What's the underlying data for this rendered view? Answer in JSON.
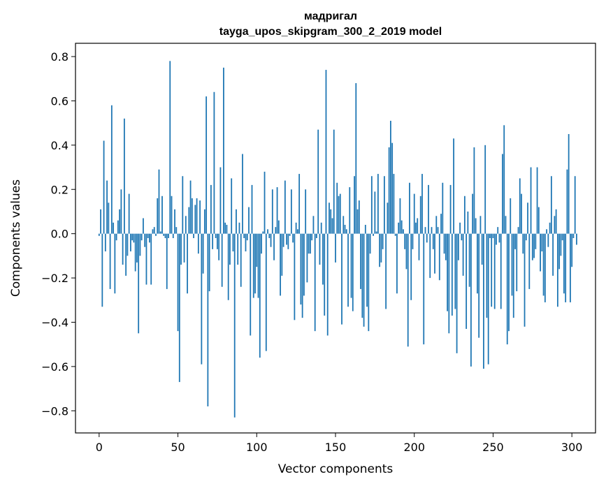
{
  "chart_data": {
    "type": "bar",
    "title": "мадригал",
    "subtitle": "tayga_upos_skipgram_300_2_2019 model",
    "xlabel": "Vector components",
    "ylabel": "Components values",
    "xlim": [
      -15,
      315
    ],
    "ylim": [
      -0.9,
      0.86
    ],
    "xticks": [
      0,
      50,
      100,
      150,
      200,
      250,
      300
    ],
    "yticks": [
      -0.8,
      -0.6,
      -0.4,
      -0.2,
      0.0,
      0.2,
      0.4,
      0.6,
      0.8
    ],
    "xtick_labels": [
      "0",
      "50",
      "100",
      "150",
      "200",
      "250",
      "300"
    ],
    "ytick_labels": [
      "−0.8",
      "−0.6",
      "−0.4",
      "−0.2",
      "0.0",
      "0.2",
      "0.4",
      "0.6",
      "0.8"
    ],
    "grid": false,
    "bar_color": "#1f77b4",
    "values": [
      -0.01,
      0.11,
      -0.33,
      0.42,
      -0.08,
      0.24,
      0.14,
      -0.25,
      0.58,
      0.05,
      -0.27,
      -0.03,
      0.06,
      0.11,
      0.2,
      -0.14,
      0.52,
      -0.19,
      -0.1,
      0.18,
      -0.08,
      -0.03,
      -0.04,
      -0.17,
      -0.13,
      -0.45,
      -0.1,
      -0.03,
      0.07,
      -0.06,
      -0.23,
      -0.02,
      -0.04,
      -0.23,
      0.02,
      0.03,
      -0.01,
      0.16,
      0.29,
      0.01,
      0.17,
      -0.01,
      -0.02,
      -0.25,
      -0.02,
      0.78,
      0.17,
      -0.02,
      0.11,
      0.03,
      -0.44,
      -0.67,
      -0.14,
      0.26,
      -0.13,
      0.08,
      -0.27,
      0.12,
      0.24,
      0.16,
      -0.02,
      0.13,
      0.16,
      -0.09,
      0.15,
      -0.59,
      -0.18,
      0.11,
      0.62,
      -0.78,
      -0.26,
      0.22,
      -0.07,
      0.64,
      -0.02,
      -0.07,
      -0.12,
      0.3,
      -0.24,
      0.75,
      0.05,
      0.04,
      -0.3,
      -0.14,
      0.25,
      -0.08,
      -0.83,
      0.11,
      -0.14,
      0.05,
      -0.24,
      0.36,
      -0.02,
      -0.08,
      -0.03,
      0.12,
      -0.46,
      0.22,
      -0.29,
      -0.27,
      -0.15,
      -0.29,
      -0.56,
      -0.09,
      0.01,
      0.28,
      -0.53,
      0.02,
      -0.02,
      -0.06,
      0.2,
      -0.12,
      0.03,
      0.21,
      0.06,
      -0.28,
      -0.19,
      -0.06,
      0.24,
      -0.05,
      -0.07,
      -0.01,
      0.2,
      -0.04,
      -0.39,
      0.05,
      0.02,
      0.27,
      -0.32,
      -0.38,
      -0.28,
      0.2,
      -0.22,
      -0.09,
      -0.09,
      -0.03,
      0.08,
      -0.44,
      -0.02,
      0.47,
      -0.14,
      0.05,
      -0.23,
      -0.37,
      0.74,
      -0.46,
      0.14,
      0.11,
      0.07,
      0.47,
      -0.13,
      0.23,
      0.17,
      0.18,
      -0.41,
      0.08,
      0.04,
      0.02,
      -0.33,
      0.21,
      -0.29,
      -0.35,
      0.26,
      0.68,
      0.11,
      0.15,
      -0.25,
      -0.38,
      -0.42,
      0.04,
      -0.33,
      -0.44,
      -0.09,
      0.26,
      -0.01,
      0.19,
      0.01,
      0.27,
      -0.15,
      -0.13,
      -0.07,
      0.26,
      -0.34,
      0.14,
      0.39,
      0.51,
      0.41,
      0.27,
      -0.01,
      -0.27,
      0.05,
      0.16,
      0.06,
      0.02,
      -0.07,
      -0.16,
      -0.51,
      0.23,
      -0.3,
      -0.07,
      0.18,
      0.05,
      0.07,
      -0.12,
      0.17,
      0.27,
      -0.5,
      0.03,
      -0.04,
      0.22,
      -0.2,
      0.03,
      -0.07,
      -0.18,
      0.08,
      0.03,
      -0.21,
      0.09,
      0.23,
      -0.09,
      -0.12,
      -0.35,
      -0.45,
      0.22,
      -0.37,
      0.43,
      -0.34,
      -0.54,
      -0.12,
      0.05,
      -0.03,
      -0.19,
      0.17,
      -0.43,
      0.1,
      -0.24,
      -0.6,
      0.18,
      0.39,
      0.07,
      -0.27,
      -0.47,
      0.08,
      -0.14,
      -0.61,
      0.4,
      -0.38,
      -0.59,
      -0.02,
      -0.33,
      -0.02,
      -0.34,
      -0.05,
      0.03,
      -0.04,
      -0.34,
      0.36,
      0.49,
      0.08,
      -0.5,
      -0.44,
      0.16,
      -0.28,
      -0.38,
      -0.07,
      -0.26,
      0.03,
      0.25,
      0.18,
      -0.09,
      -0.42,
      -0.03,
      0.14,
      -0.25,
      0.3,
      -0.12,
      -0.11,
      -0.07,
      0.3,
      0.12,
      -0.17,
      -0.08,
      -0.28,
      -0.31,
      0.02,
      -0.06,
      0.05,
      0.26,
      -0.19,
      0.08,
      0.11,
      -0.33,
      -0.16,
      -0.1,
      -0.03,
      -0.27,
      -0.31,
      0.29,
      0.45,
      -0.31,
      -0.15,
      -0.02,
      0.26,
      -0.05
    ]
  }
}
